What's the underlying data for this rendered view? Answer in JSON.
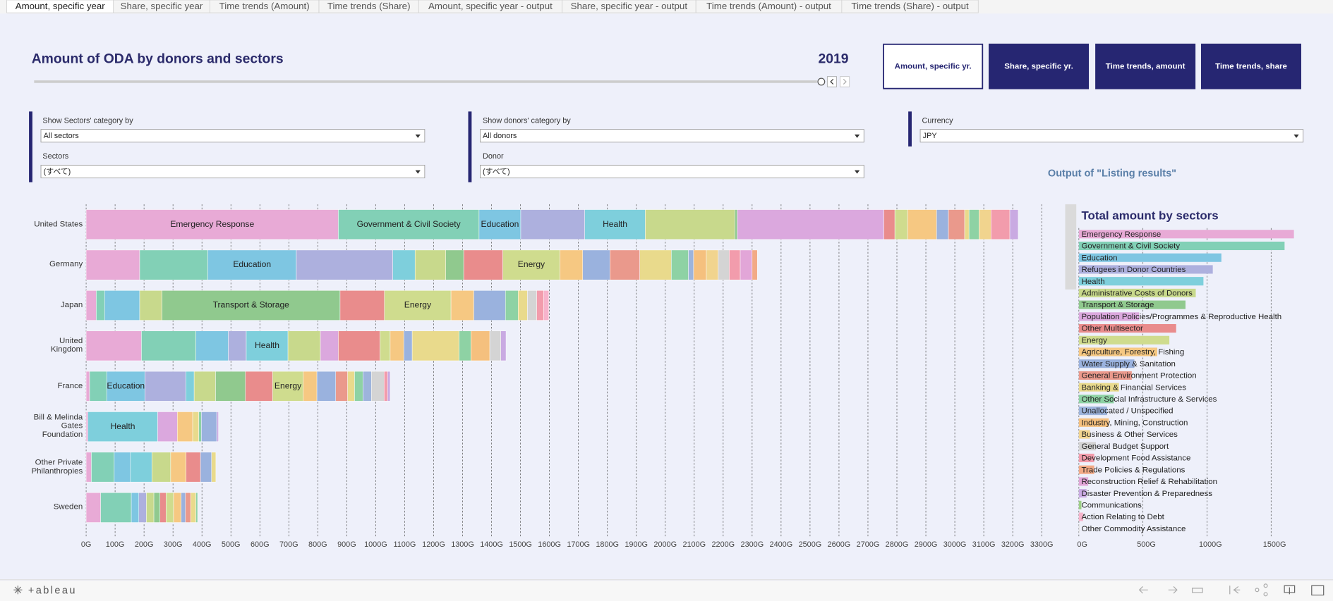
{
  "tabs": [
    "Amount, specific year",
    "Share, specific year",
    "Time trends (Amount)",
    "Time trends (Share)",
    "Amount, specific year - output",
    "Share, specific year - output",
    "Time trends (Amount) - output",
    "Time trends (Share) - output"
  ],
  "header": {
    "title": "Amount of ODA  by donors and sectors",
    "year": "2019"
  },
  "buttons": [
    "Amount, specific yr.",
    "Share, specific yr.",
    "Time trends, amount",
    "Time trends, share"
  ],
  "filters": [
    {
      "label": "Show Sectors' category by",
      "value": "All sectors"
    },
    {
      "label": "Sectors",
      "value": "(すべて)"
    },
    {
      "label": "Show donors' category by",
      "value": "All donors"
    },
    {
      "label": "Donor",
      "value": "(すべて)"
    },
    {
      "label": "Currency",
      "value": "JPY"
    }
  ],
  "output_note": "Output of \"Listing results\"",
  "footer": {
    "logo": "+ableau"
  },
  "chart_data": [
    {
      "type": "stacked_bar",
      "categories": [
        "United States",
        "Germany",
        "Japan",
        "United Kingdom",
        "France",
        "Bill & Melinda Gates Foundation",
        "Other Private Philanthropies",
        "Sweden"
      ],
      "stacks": [
        [
          {
            "value": 871,
            "color": "#e8aad6",
            "label": "Emergency Response"
          },
          {
            "value": 486,
            "color": "#82d0b6",
            "label": "Government & Civil Society"
          },
          {
            "value": 144,
            "color": "#7ec6e2",
            "label": "Education"
          },
          {
            "value": 221,
            "color": "#adb0de"
          },
          {
            "value": 209,
            "color": "#7ecfdc",
            "label": "Health"
          },
          {
            "value": 309,
            "color": "#c8d98c"
          },
          {
            "value": 9,
            "color": "#90c98e"
          },
          {
            "value": 506,
            "color": "#dba8de"
          },
          {
            "value": 38,
            "color": "#e98c8c"
          },
          {
            "value": 44,
            "color": "#cfdc8e"
          },
          {
            "value": 100,
            "color": "#f6c882"
          },
          {
            "value": 41,
            "color": "#9ab2de"
          },
          {
            "value": 56,
            "color": "#ea998c"
          },
          {
            "value": 15,
            "color": "#e9da8c"
          },
          {
            "value": 35,
            "color": "#8ed2a4"
          },
          {
            "value": 41,
            "color": "#f1d48e"
          },
          {
            "value": 65,
            "color": "#f29cac"
          },
          {
            "value": 29,
            "color": "#c9aae2"
          }
        ],
        [
          {
            "value": 185,
            "color": "#e8aad6"
          },
          {
            "value": 235,
            "color": "#82d0b6"
          },
          {
            "value": 306,
            "color": "#7ec6e2",
            "label": "Education"
          },
          {
            "value": 333,
            "color": "#adb0de"
          },
          {
            "value": 77,
            "color": "#7ecfdc"
          },
          {
            "value": 106,
            "color": "#c8d98c"
          },
          {
            "value": 62,
            "color": "#90c98e"
          },
          {
            "value": 135,
            "color": "#e98c8c"
          },
          {
            "value": 197,
            "color": "#cfdc8e",
            "label": "Energy"
          },
          {
            "value": 79,
            "color": "#f6c882"
          },
          {
            "value": 94,
            "color": "#9ab2de"
          },
          {
            "value": 103,
            "color": "#ea998c"
          },
          {
            "value": 109,
            "color": "#e9da8c"
          },
          {
            "value": 59,
            "color": "#8ed2a4"
          },
          {
            "value": 18,
            "color": "#9db4dc"
          },
          {
            "value": 44,
            "color": "#f5c07e"
          },
          {
            "value": 41,
            "color": "#f1d48e"
          },
          {
            "value": 38,
            "color": "#d4d4d4"
          },
          {
            "value": 38,
            "color": "#f29cac"
          },
          {
            "value": 41,
            "color": "#e2a6d8"
          },
          {
            "value": 18,
            "color": "#f2aa86"
          }
        ],
        [
          {
            "value": 35,
            "color": "#e8aad6"
          },
          {
            "value": 29,
            "color": "#82d0b6"
          },
          {
            "value": 121,
            "color": "#7ec6e2"
          },
          {
            "value": 77,
            "color": "#c8d98c"
          },
          {
            "value": 615,
            "color": "#90c98e",
            "label": "Transport & Storage"
          },
          {
            "value": 153,
            "color": "#e98c8c"
          },
          {
            "value": 230,
            "color": "#cfdc8e",
            "label": "Energy"
          },
          {
            "value": 79,
            "color": "#f6c882"
          },
          {
            "value": 109,
            "color": "#9ab2de"
          },
          {
            "value": 44,
            "color": "#8ed2a4"
          },
          {
            "value": 32,
            "color": "#e9da8c"
          },
          {
            "value": 32,
            "color": "#d4d4d4"
          },
          {
            "value": 24,
            "color": "#f29cac"
          },
          {
            "value": 18,
            "color": "#f7b4cc"
          }
        ],
        [
          {
            "value": 191,
            "color": "#e8aad6"
          },
          {
            "value": 188,
            "color": "#82d0b6"
          },
          {
            "value": 112,
            "color": "#7ec6e2"
          },
          {
            "value": 62,
            "color": "#adb0de"
          },
          {
            "value": 144,
            "color": "#7ecfdc",
            "label": "Health"
          },
          {
            "value": 112,
            "color": "#c8d98c"
          },
          {
            "value": 62,
            "color": "#dba8de"
          },
          {
            "value": 144,
            "color": "#e98c8c"
          },
          {
            "value": 35,
            "color": "#cfdc8e"
          },
          {
            "value": 47,
            "color": "#f6c882"
          },
          {
            "value": 29,
            "color": "#9ab2de"
          },
          {
            "value": 162,
            "color": "#e9da8c"
          },
          {
            "value": 41,
            "color": "#8ed2a4"
          },
          {
            "value": 65,
            "color": "#f5c07e"
          },
          {
            "value": 38,
            "color": "#d4d4d4"
          },
          {
            "value": 18,
            "color": "#c9aae2"
          }
        ],
        [
          {
            "value": 12,
            "color": "#e8aad6"
          },
          {
            "value": 59,
            "color": "#82d0b6"
          },
          {
            "value": 132,
            "color": "#7ec6e2",
            "label": "Education"
          },
          {
            "value": 141,
            "color": "#adb0de"
          },
          {
            "value": 29,
            "color": "#7ecfdc"
          },
          {
            "value": 74,
            "color": "#c8d98c"
          },
          {
            "value": 103,
            "color": "#90c98e"
          },
          {
            "value": 94,
            "color": "#e98c8c"
          },
          {
            "value": 106,
            "color": "#cfdc8e",
            "label": "Energy"
          },
          {
            "value": 47,
            "color": "#f6c882"
          },
          {
            "value": 65,
            "color": "#9ab2de"
          },
          {
            "value": 41,
            "color": "#ea998c"
          },
          {
            "value": 24,
            "color": "#e9da8c"
          },
          {
            "value": 29,
            "color": "#8ed2a4"
          },
          {
            "value": 29,
            "color": "#9db4dc"
          },
          {
            "value": 44,
            "color": "#d4d4d4"
          },
          {
            "value": 12,
            "color": "#f29cac"
          },
          {
            "value": 9,
            "color": "#c9aae2"
          }
        ],
        [
          {
            "value": 6,
            "color": "#e8aad6"
          },
          {
            "value": 241,
            "color": "#7ecfdc",
            "label": "Health"
          },
          {
            "value": 68,
            "color": "#dba8de"
          },
          {
            "value": 53,
            "color": "#f6c882"
          },
          {
            "value": 21,
            "color": "#e9da8c"
          },
          {
            "value": 9,
            "color": "#8ed2a4"
          },
          {
            "value": 53,
            "color": "#9ab2de"
          },
          {
            "value": 6,
            "color": "#c9aae2"
          }
        ],
        [
          {
            "value": 18,
            "color": "#e8aad6"
          },
          {
            "value": 79,
            "color": "#82d0b6"
          },
          {
            "value": 56,
            "color": "#7ec6e2"
          },
          {
            "value": 74,
            "color": "#7ecfdc"
          },
          {
            "value": 65,
            "color": "#c8d98c"
          },
          {
            "value": 53,
            "color": "#f6c882"
          },
          {
            "value": 50,
            "color": "#e98c8c"
          },
          {
            "value": 38,
            "color": "#9ab2de"
          },
          {
            "value": 15,
            "color": "#e9da8c"
          }
        ],
        [
          {
            "value": 50,
            "color": "#e8aad6"
          },
          {
            "value": 106,
            "color": "#82d0b6"
          },
          {
            "value": 26,
            "color": "#7ec6e2"
          },
          {
            "value": 26,
            "color": "#adb0de"
          },
          {
            "value": 26,
            "color": "#c8d98c"
          },
          {
            "value": 21,
            "color": "#90c98e"
          },
          {
            "value": 21,
            "color": "#e98c8c"
          },
          {
            "value": 26,
            "color": "#cfdc8e"
          },
          {
            "value": 26,
            "color": "#f6c882"
          },
          {
            "value": 15,
            "color": "#9ab2de"
          },
          {
            "value": 18,
            "color": "#ea998c"
          },
          {
            "value": 18,
            "color": "#e9da8c"
          },
          {
            "value": 6,
            "color": "#8ed2a4"
          }
        ]
      ],
      "xlim": [
        0,
        3340
      ],
      "xticks": [
        {
          "value": 0,
          "label": "0G"
        },
        {
          "value": 100,
          "label": "100G"
        },
        {
          "value": 200,
          "label": "200G"
        },
        {
          "value": 300,
          "label": "300G"
        },
        {
          "value": 400,
          "label": "400G"
        },
        {
          "value": 500,
          "label": "500G"
        },
        {
          "value": 600,
          "label": "600G"
        },
        {
          "value": 700,
          "label": "700G"
        },
        {
          "value": 800,
          "label": "800G"
        },
        {
          "value": 900,
          "label": "900G"
        },
        {
          "value": 1000,
          "label": "1000G"
        },
        {
          "value": 1100,
          "label": "1100G"
        },
        {
          "value": 1200,
          "label": "1200G"
        },
        {
          "value": 1300,
          "label": "1300G"
        },
        {
          "value": 1400,
          "label": "1400G"
        },
        {
          "value": 1500,
          "label": "1500G"
        },
        {
          "value": 1600,
          "label": "1600G"
        },
        {
          "value": 1700,
          "label": "1700G"
        },
        {
          "value": 1800,
          "label": "1800G"
        },
        {
          "value": 1900,
          "label": "1900G"
        },
        {
          "value": 2000,
          "label": "2000G"
        },
        {
          "value": 2100,
          "label": "2100G"
        },
        {
          "value": 2200,
          "label": "2200G"
        },
        {
          "value": 2300,
          "label": "2300G"
        },
        {
          "value": 2400,
          "label": "2400G"
        },
        {
          "value": 2500,
          "label": "2500G"
        },
        {
          "value": 2600,
          "label": "2600G"
        },
        {
          "value": 2700,
          "label": "2700G"
        },
        {
          "value": 2800,
          "label": "2800G"
        },
        {
          "value": 2900,
          "label": "2900G"
        },
        {
          "value": 3000,
          "label": "3000G"
        },
        {
          "value": 3100,
          "label": "3100G"
        },
        {
          "value": 3200,
          "label": "3200G"
        },
        {
          "value": 3300,
          "label": "3300G"
        }
      ],
      "grid": true
    },
    {
      "type": "bar",
      "title": "Total amount by sectors",
      "categories": [
        "Emergency Response",
        "Government & Civil Society",
        "Education",
        "Refugees in Donor Countries",
        "Health",
        "Administrative Costs of Donors",
        "Transport & Storage",
        "Population Policies/Programmes & Reproductive Health",
        "Other Multisector",
        "Energy",
        "Agriculture, Forestry, Fishing",
        "Water Supply & Sanitation",
        "General Environment Protection",
        "Banking & Financial Services",
        "Other Social Infrastructure & Services",
        "Unallocated / Unspecified",
        "Industry, Mining, Construction",
        "Business & Other Services",
        "General Budget Support",
        "Development Food Assistance",
        "Trade Policies & Regulations",
        "Reconstruction Relief & Rehabilitation",
        "Disaster Prevention & Preparedness",
        "Communications",
        "Action Relating to Debt",
        "Other Commodity Assistance"
      ],
      "values": [
        1678,
        1605,
        1112,
        1045,
        972,
        912,
        832,
        470,
        759,
        706,
        612,
        433,
        413,
        313,
        273,
        220,
        233,
        87,
        133,
        120,
        120,
        73,
        60,
        20,
        33,
        7
      ],
      "colors": [
        "#e8aad6",
        "#82d0b6",
        "#7ec6e2",
        "#adb0de",
        "#7ecfdc",
        "#c8d98c",
        "#90c98e",
        "#dba8de",
        "#e98c8c",
        "#cfdc8e",
        "#f6c882",
        "#9ab2de",
        "#ea998c",
        "#e9da8c",
        "#8ed2a4",
        "#9db4dc",
        "#f5c07e",
        "#f1d48e",
        "#d4d4d4",
        "#f29cac",
        "#f2aa86",
        "#e2a6d8",
        "#c9aae2",
        "#9ccf86",
        "#f7b4cc",
        "#e4e4e4"
      ],
      "xlim": [
        0,
        1730
      ],
      "xticks": [
        {
          "value": 0,
          "label": "0G"
        },
        {
          "value": 500,
          "label": "500G"
        },
        {
          "value": 1000,
          "label": "1000G"
        },
        {
          "value": 1500,
          "label": "1500G"
        }
      ],
      "grid": true
    }
  ]
}
